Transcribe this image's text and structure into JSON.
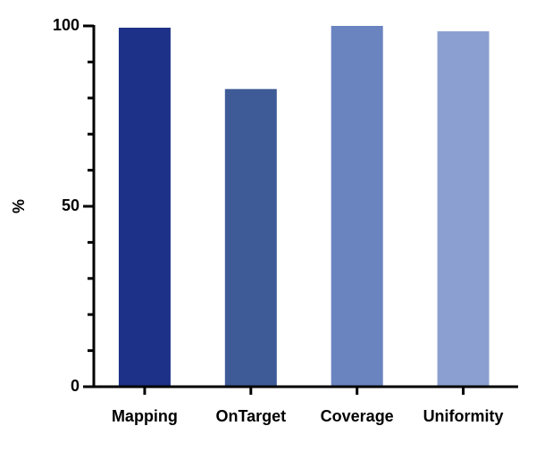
{
  "chart_data": {
    "type": "bar",
    "ylabel": "%",
    "categories": [
      "Mapping",
      "OnTarget",
      "Coverage",
      "Uniformity"
    ],
    "values": [
      99.5,
      82.5,
      100,
      98.5
    ],
    "colors": [
      "#1c3187",
      "#3e5b98",
      "#6a84c0",
      "#8ba0d0"
    ],
    "ylim": [
      0,
      100
    ],
    "yticks": [
      0,
      50,
      100
    ],
    "yminorticks": [
      10,
      20,
      30,
      40,
      60,
      70,
      80,
      90
    ]
  }
}
